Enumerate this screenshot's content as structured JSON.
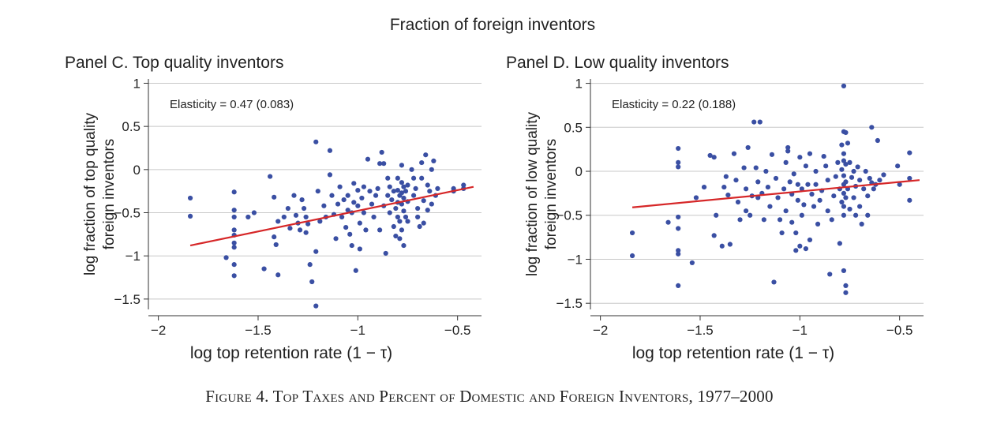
{
  "figure": {
    "title": "Fraction of foreign inventors",
    "caption": "Figure 4. Top Taxes and Percent of Domestic and Foreign Inventors, 1977–2000"
  },
  "colors": {
    "points": "#3a4fa3",
    "fit_line": "#d62728",
    "grid": "#c8c8c8",
    "axis": "#333333"
  },
  "chart_data": [
    {
      "type": "scatter",
      "title": "Panel C. Top quality inventors",
      "xlabel": "log top retention rate (1 − τ)",
      "ylabel_lines": [
        "log fraction of top quality",
        "foreign inventors"
      ],
      "annotation": "Elasticity = 0.47 (0.083)",
      "xlim": [
        -2.05,
        -0.38
      ],
      "ylim": [
        -1.62,
        1.05
      ],
      "xticks": [
        -2,
        -1.5,
        -1,
        -0.5
      ],
      "xtick_labels": [
        "−2",
        "−1.5",
        "−1",
        "−0.5"
      ],
      "yticks": [
        1,
        0.5,
        0,
        -0.5,
        -1,
        -1.5
      ],
      "ytick_labels": [
        "1",
        "0.5",
        "0",
        "−0.5",
        "−1",
        "−1.5"
      ],
      "grid": "horizontal",
      "fit_line": {
        "x": [
          -1.84,
          -0.42
        ],
        "y": [
          -0.88,
          -0.2
        ]
      },
      "points": [
        [
          -1.84,
          -0.33
        ],
        [
          -1.84,
          -0.54
        ],
        [
          -1.62,
          -0.26
        ],
        [
          -1.62,
          -0.47
        ],
        [
          -1.62,
          -0.55
        ],
        [
          -1.62,
          -0.7
        ],
        [
          -1.62,
          -0.76
        ],
        [
          -1.62,
          -0.85
        ],
        [
          -1.62,
          -0.9
        ],
        [
          -1.62,
          -1.1
        ],
        [
          -1.62,
          -1.23
        ],
        [
          -1.66,
          -1.02
        ],
        [
          -1.55,
          -0.55
        ],
        [
          -1.52,
          -0.5
        ],
        [
          -1.47,
          -1.15
        ],
        [
          -1.44,
          -0.08
        ],
        [
          -1.42,
          -0.32
        ],
        [
          -1.42,
          -0.78
        ],
        [
          -1.41,
          -0.87
        ],
        [
          -1.4,
          -0.6
        ],
        [
          -1.4,
          -1.22
        ],
        [
          -1.37,
          -0.55
        ],
        [
          -1.35,
          -0.45
        ],
        [
          -1.34,
          -0.68
        ],
        [
          -1.32,
          -0.3
        ],
        [
          -1.31,
          -0.53
        ],
        [
          -1.3,
          -0.62
        ],
        [
          -1.29,
          -0.7
        ],
        [
          -1.28,
          -0.35
        ],
        [
          -1.27,
          -0.45
        ],
        [
          -1.26,
          -0.55
        ],
        [
          -1.26,
          -0.73
        ],
        [
          -1.25,
          -0.63
        ],
        [
          -1.24,
          -1.1
        ],
        [
          -1.23,
          -1.3
        ],
        [
          -1.21,
          0.32
        ],
        [
          -1.21,
          -0.95
        ],
        [
          -1.21,
          -1.58
        ],
        [
          -1.2,
          -0.25
        ],
        [
          -1.19,
          -0.6
        ],
        [
          -1.17,
          -0.42
        ],
        [
          -1.16,
          -0.55
        ],
        [
          -1.14,
          0.22
        ],
        [
          -1.14,
          -0.06
        ],
        [
          -1.13,
          -0.3
        ],
        [
          -1.12,
          -0.52
        ],
        [
          -1.11,
          -0.8
        ],
        [
          -1.1,
          -0.4
        ],
        [
          -1.09,
          -0.2
        ],
        [
          -1.08,
          -0.55
        ],
        [
          -1.07,
          -0.35
        ],
        [
          -1.06,
          -0.67
        ],
        [
          -1.05,
          -0.3
        ],
        [
          -1.05,
          -0.47
        ],
        [
          -1.04,
          -0.75
        ],
        [
          -1.03,
          -0.5
        ],
        [
          -1.03,
          -0.88
        ],
        [
          -1.02,
          -0.16
        ],
        [
          -1.02,
          -0.38
        ],
        [
          -1.01,
          -1.17
        ],
        [
          -1.0,
          -0.24
        ],
        [
          -1.0,
          -0.42
        ],
        [
          -0.99,
          -0.62
        ],
        [
          -0.99,
          -0.92
        ],
        [
          -0.98,
          -0.33
        ],
        [
          -0.97,
          -0.2
        ],
        [
          -0.97,
          -0.5
        ],
        [
          -0.96,
          -0.7
        ],
        [
          -0.95,
          0.12
        ],
        [
          -0.94,
          -0.25
        ],
        [
          -0.93,
          -0.4
        ],
        [
          -0.92,
          -0.55
        ],
        [
          -0.91,
          -0.3
        ],
        [
          -0.9,
          -0.22
        ],
        [
          -0.89,
          0.07
        ],
        [
          -0.89,
          -0.7
        ],
        [
          -0.88,
          0.2
        ],
        [
          -0.87,
          0.07
        ],
        [
          -0.87,
          -0.42
        ],
        [
          -0.86,
          -0.97
        ],
        [
          -0.85,
          -0.1
        ],
        [
          -0.85,
          -0.3
        ],
        [
          -0.84,
          -0.2
        ],
        [
          -0.84,
          -0.5
        ],
        [
          -0.83,
          -0.35
        ],
        [
          -0.82,
          -0.25
        ],
        [
          -0.82,
          -0.66
        ],
        [
          -0.81,
          -0.45
        ],
        [
          -0.81,
          -0.77
        ],
        [
          -0.8,
          -0.1
        ],
        [
          -0.8,
          -0.24
        ],
        [
          -0.8,
          -0.38
        ],
        [
          -0.8,
          -0.55
        ],
        [
          -0.79,
          -0.3
        ],
        [
          -0.79,
          -0.6
        ],
        [
          -0.79,
          -0.8
        ],
        [
          -0.78,
          0.05
        ],
        [
          -0.78,
          -0.15
        ],
        [
          -0.78,
          -0.27
        ],
        [
          -0.78,
          -0.4
        ],
        [
          -0.78,
          -0.7
        ],
        [
          -0.77,
          -0.2
        ],
        [
          -0.77,
          -0.33
        ],
        [
          -0.77,
          -0.48
        ],
        [
          -0.77,
          -0.88
        ],
        [
          -0.76,
          -0.25
        ],
        [
          -0.76,
          -0.55
        ],
        [
          -0.75,
          -0.18
        ],
        [
          -0.75,
          -0.37
        ],
        [
          -0.75,
          -0.6
        ],
        [
          -0.73,
          0.0
        ],
        [
          -0.72,
          -0.1
        ],
        [
          -0.72,
          -0.3
        ],
        [
          -0.71,
          -0.22
        ],
        [
          -0.7,
          -0.45
        ],
        [
          -0.7,
          -0.55
        ],
        [
          -0.69,
          -0.66
        ],
        [
          -0.68,
          0.08
        ],
        [
          -0.68,
          -0.1
        ],
        [
          -0.67,
          -0.36
        ],
        [
          -0.67,
          -0.62
        ],
        [
          -0.66,
          0.17
        ],
        [
          -0.65,
          -0.18
        ],
        [
          -0.65,
          -0.47
        ],
        [
          -0.64,
          -0.25
        ],
        [
          -0.63,
          0.0
        ],
        [
          -0.63,
          -0.4
        ],
        [
          -0.62,
          0.1
        ],
        [
          -0.61,
          -0.3
        ],
        [
          -0.6,
          -0.22
        ],
        [
          -0.52,
          -0.22
        ],
        [
          -0.52,
          -0.25
        ],
        [
          -0.47,
          -0.22
        ],
        [
          -0.47,
          -0.18
        ]
      ]
    },
    {
      "type": "scatter",
      "title": "Panel D. Low quality inventors",
      "xlabel": "log top retention rate (1 − τ)",
      "ylabel_lines": [
        "log fraction of low quality",
        "foreign inventors"
      ],
      "annotation": "Elasticity = 0.22 (0.188)",
      "xlim": [
        -2.05,
        -0.38
      ],
      "ylim": [
        -1.57,
        1.05
      ],
      "xticks": [
        -2,
        -1.5,
        -1,
        -0.5
      ],
      "xtick_labels": [
        "−2",
        "−1.5",
        "−1",
        "−0.5"
      ],
      "yticks": [
        1,
        0.5,
        0,
        -0.5,
        -1,
        -1.5
      ],
      "ytick_labels": [
        "1",
        "0.5",
        "0",
        "−0.5",
        "−1",
        "−1.5"
      ],
      "grid": "horizontal",
      "fit_line": {
        "x": [
          -1.84,
          -0.4
        ],
        "y": [
          -0.41,
          -0.1
        ]
      },
      "points": [
        [
          -1.84,
          -0.7
        ],
        [
          -1.84,
          -0.96
        ],
        [
          -1.66,
          -0.58
        ],
        [
          -1.61,
          0.26
        ],
        [
          -1.61,
          0.1
        ],
        [
          -1.61,
          0.05
        ],
        [
          -1.61,
          -0.52
        ],
        [
          -1.61,
          -0.65
        ],
        [
          -1.61,
          -0.9
        ],
        [
          -1.61,
          -0.94
        ],
        [
          -1.61,
          -1.3
        ],
        [
          -1.54,
          -1.04
        ],
        [
          -1.52,
          -0.3
        ],
        [
          -1.48,
          -0.18
        ],
        [
          -1.45,
          0.18
        ],
        [
          -1.43,
          0.16
        ],
        [
          -1.43,
          -0.73
        ],
        [
          -1.42,
          -0.5
        ],
        [
          -1.39,
          -0.85
        ],
        [
          -1.38,
          -0.18
        ],
        [
          -1.37,
          -0.06
        ],
        [
          -1.36,
          -0.27
        ],
        [
          -1.35,
          -0.83
        ],
        [
          -1.33,
          0.2
        ],
        [
          -1.32,
          -0.1
        ],
        [
          -1.31,
          -0.35
        ],
        [
          -1.3,
          -0.55
        ],
        [
          -1.28,
          0.04
        ],
        [
          -1.27,
          -0.2
        ],
        [
          -1.27,
          -0.45
        ],
        [
          -1.26,
          0.27
        ],
        [
          -1.25,
          -0.5
        ],
        [
          -1.24,
          -0.28
        ],
        [
          -1.23,
          0.56
        ],
        [
          -1.22,
          0.04
        ],
        [
          -1.21,
          -0.12
        ],
        [
          -1.21,
          -0.3
        ],
        [
          -1.2,
          0.56
        ],
        [
          -1.19,
          -0.25
        ],
        [
          -1.18,
          -0.55
        ],
        [
          -1.17,
          0.0
        ],
        [
          -1.16,
          -0.18
        ],
        [
          -1.15,
          -0.4
        ],
        [
          -1.14,
          0.19
        ],
        [
          -1.13,
          -1.26
        ],
        [
          -1.12,
          -0.08
        ],
        [
          -1.11,
          -0.3
        ],
        [
          -1.1,
          -0.55
        ],
        [
          -1.09,
          -0.7
        ],
        [
          -1.08,
          -0.2
        ],
        [
          -1.07,
          0.1
        ],
        [
          -1.07,
          -0.45
        ],
        [
          -1.06,
          0.23
        ],
        [
          -1.06,
          0.27
        ],
        [
          -1.05,
          -0.12
        ],
        [
          -1.04,
          -0.26
        ],
        [
          -1.04,
          -0.58
        ],
        [
          -1.03,
          -0.03
        ],
        [
          -1.02,
          -0.7
        ],
        [
          -1.02,
          -0.9
        ],
        [
          -1.01,
          -0.15
        ],
        [
          -1.01,
          -0.33
        ],
        [
          -1.0,
          0.16
        ],
        [
          -1.0,
          -0.85
        ],
        [
          -0.99,
          -0.2
        ],
        [
          -0.99,
          -0.5
        ],
        [
          -0.98,
          -0.38
        ],
        [
          -0.97,
          0.06
        ],
        [
          -0.97,
          -0.88
        ],
        [
          -0.96,
          -0.15
        ],
        [
          -0.95,
          0.2
        ],
        [
          -0.95,
          -0.78
        ],
        [
          -0.94,
          -0.26
        ],
        [
          -0.93,
          -0.4
        ],
        [
          -0.92,
          0.0
        ],
        [
          -0.92,
          -0.15
        ],
        [
          -0.91,
          -0.6
        ],
        [
          -0.9,
          -0.33
        ],
        [
          -0.89,
          -0.22
        ],
        [
          -0.88,
          0.17
        ],
        [
          -0.87,
          0.06
        ],
        [
          -0.86,
          -0.1
        ],
        [
          -0.86,
          -0.45
        ],
        [
          -0.85,
          -1.17
        ],
        [
          -0.84,
          -0.55
        ],
        [
          -0.83,
          -0.28
        ],
        [
          -0.82,
          -0.06
        ],
        [
          -0.81,
          0.1
        ],
        [
          -0.8,
          -0.2
        ],
        [
          -0.8,
          -0.82
        ],
        [
          -0.79,
          0.3
        ],
        [
          -0.79,
          0.02
        ],
        [
          -0.79,
          -0.35
        ],
        [
          -0.78,
          0.97
        ],
        [
          -0.78,
          0.45
        ],
        [
          -0.78,
          0.2
        ],
        [
          -0.78,
          0.12
        ],
        [
          -0.78,
          -0.05
        ],
        [
          -0.78,
          -0.15
        ],
        [
          -0.78,
          -0.25
        ],
        [
          -0.78,
          -0.4
        ],
        [
          -0.78,
          -0.5
        ],
        [
          -0.78,
          -1.13
        ],
        [
          -0.77,
          0.44
        ],
        [
          -0.77,
          0.08
        ],
        [
          -0.77,
          -0.12
        ],
        [
          -0.77,
          -0.3
        ],
        [
          -0.77,
          -1.3
        ],
        [
          -0.77,
          -1.38
        ],
        [
          -0.76,
          0.32
        ],
        [
          -0.76,
          -0.2
        ],
        [
          -0.75,
          0.1
        ],
        [
          -0.75,
          -0.43
        ],
        [
          -0.74,
          -0.07
        ],
        [
          -0.73,
          0.0
        ],
        [
          -0.73,
          -0.3
        ],
        [
          -0.72,
          -0.17
        ],
        [
          -0.72,
          -0.5
        ],
        [
          -0.71,
          0.05
        ],
        [
          -0.7,
          -0.1
        ],
        [
          -0.7,
          -0.4
        ],
        [
          -0.69,
          -0.6
        ],
        [
          -0.68,
          -0.2
        ],
        [
          -0.67,
          0.0
        ],
        [
          -0.66,
          -0.28
        ],
        [
          -0.66,
          -0.5
        ],
        [
          -0.65,
          -0.08
        ],
        [
          -0.64,
          0.5
        ],
        [
          -0.64,
          -0.13
        ],
        [
          -0.63,
          -0.2
        ],
        [
          -0.62,
          -0.15
        ],
        [
          -0.61,
          0.35
        ],
        [
          -0.6,
          -0.1
        ],
        [
          -0.58,
          -0.04
        ],
        [
          -0.51,
          0.06
        ],
        [
          -0.5,
          -0.15
        ],
        [
          -0.45,
          0.21
        ],
        [
          -0.45,
          -0.08
        ],
        [
          -0.45,
          -0.33
        ]
      ]
    }
  ]
}
